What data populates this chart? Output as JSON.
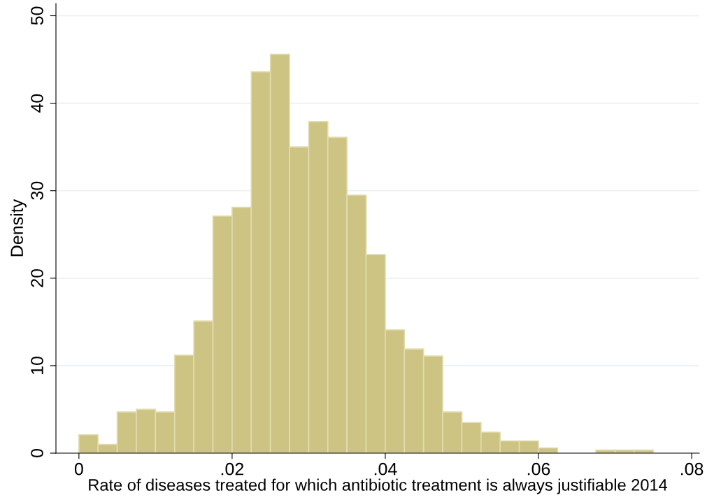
{
  "chart_data": {
    "type": "histogram",
    "xlabel": "Rate of diseases treated for which antibiotic treatment is always justifiable 2014",
    "ylabel": "Density",
    "bins": [
      0,
      0.0025,
      0.005,
      0.0075,
      0.01,
      0.0125,
      0.015,
      0.0175,
      0.02,
      0.0225,
      0.025,
      0.0275,
      0.03,
      0.0325,
      0.035,
      0.0375,
      0.04,
      0.0425,
      0.045,
      0.0475,
      0.05,
      0.0525,
      0.055,
      0.0575,
      0.06,
      0.0625,
      0.065,
      0.0675,
      0.07,
      0.0725,
      0.075
    ],
    "values": [
      2.1,
      1.0,
      4.7,
      5.0,
      4.7,
      11.2,
      15.1,
      27.1,
      28.1,
      43.6,
      45.6,
      35.0,
      37.9,
      36.1,
      29.5,
      22.7,
      14.1,
      11.9,
      11.1,
      4.7,
      3.5,
      2.4,
      1.4,
      1.4,
      0.6,
      0,
      0,
      0.35,
      0.35,
      0.35
    ],
    "color": "#cdc383",
    "xlim": [
      -0.003,
      0.081
    ],
    "ylim": [
      0,
      51.4
    ],
    "xticks": [
      {
        "value": 0,
        "label": "0"
      },
      {
        "value": 0.02,
        "label": ".02"
      },
      {
        "value": 0.04,
        "label": ".04"
      },
      {
        "value": 0.06,
        "label": ".06"
      },
      {
        "value": 0.08,
        "label": ".08"
      }
    ],
    "yticks": [
      0,
      10,
      20,
      30,
      40,
      50
    ],
    "grid": "y"
  }
}
